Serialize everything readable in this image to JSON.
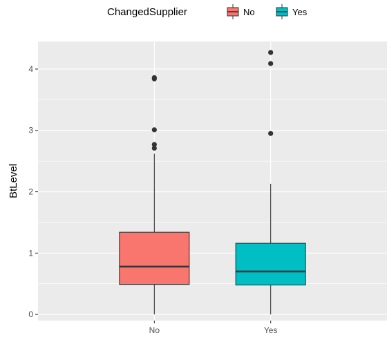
{
  "chart_data": {
    "type": "boxplot",
    "xlabel": "",
    "ylabel": "BtLevel",
    "ylim": [
      -0.1,
      4.45
    ],
    "y_ticks": [
      0,
      1,
      2,
      3,
      4
    ],
    "categories": [
      "No",
      "Yes"
    ],
    "grid": true,
    "legend": {
      "title": "ChangedSupplier",
      "position": "top",
      "entries": [
        "No",
        "Yes"
      ]
    },
    "boxes": [
      {
        "category": "No",
        "fill": "#F8766D",
        "whisker_low": 0.0,
        "q1": 0.49,
        "median": 0.78,
        "q3": 1.34,
        "whisker_high": 2.62,
        "outliers": [
          2.71,
          2.77,
          3.01,
          3.84,
          3.86
        ]
      },
      {
        "category": "Yes",
        "fill": "#00BFC4",
        "whisker_low": 0.0,
        "q1": 0.48,
        "median": 0.7,
        "q3": 1.16,
        "whisker_high": 2.13,
        "outliers": [
          2.95,
          4.09,
          4.27
        ]
      }
    ]
  }
}
